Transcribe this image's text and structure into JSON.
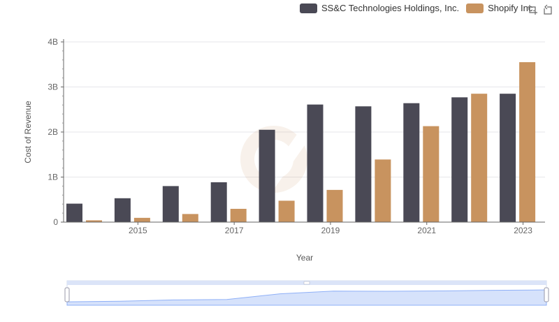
{
  "chart_data": {
    "type": "bar",
    "xlabel": "Year",
    "ylabel": "Cost of Revenue",
    "categories": [
      "2014",
      "2015",
      "2016",
      "2017",
      "2018",
      "2019",
      "2020",
      "2021",
      "2022",
      "2023"
    ],
    "x_tick_labels": [
      "2015",
      "2017",
      "2019",
      "2021",
      "2023"
    ],
    "y_tick_labels": [
      "0",
      "1B",
      "2B",
      "3B",
      "4B"
    ],
    "ylim": [
      0,
      4000000000
    ],
    "grid": true,
    "legend_position": "top-right",
    "series": [
      {
        "name": "SS&C Technologies Holdings, Inc.",
        "color": "#4a4955",
        "values": [
          410000000,
          530000000,
          800000000,
          885000000,
          2050000000,
          2610000000,
          2570000000,
          2640000000,
          2770000000,
          2850000000
        ]
      },
      {
        "name": "Shopify Inc.",
        "color": "#c8935f",
        "values": [
          40000000,
          95000000,
          180000000,
          295000000,
          475000000,
          715000000,
          1390000000,
          2130000000,
          2850000000,
          3550000000
        ]
      }
    ]
  },
  "toolbox": {
    "zoom_icon": "zoom-icon",
    "restore_icon": "restore-icon"
  },
  "data_zoom": {
    "start_percent": 0,
    "end_percent": 100,
    "fill_color": "#d6e2fb",
    "line_color": "#8fb0f7"
  }
}
